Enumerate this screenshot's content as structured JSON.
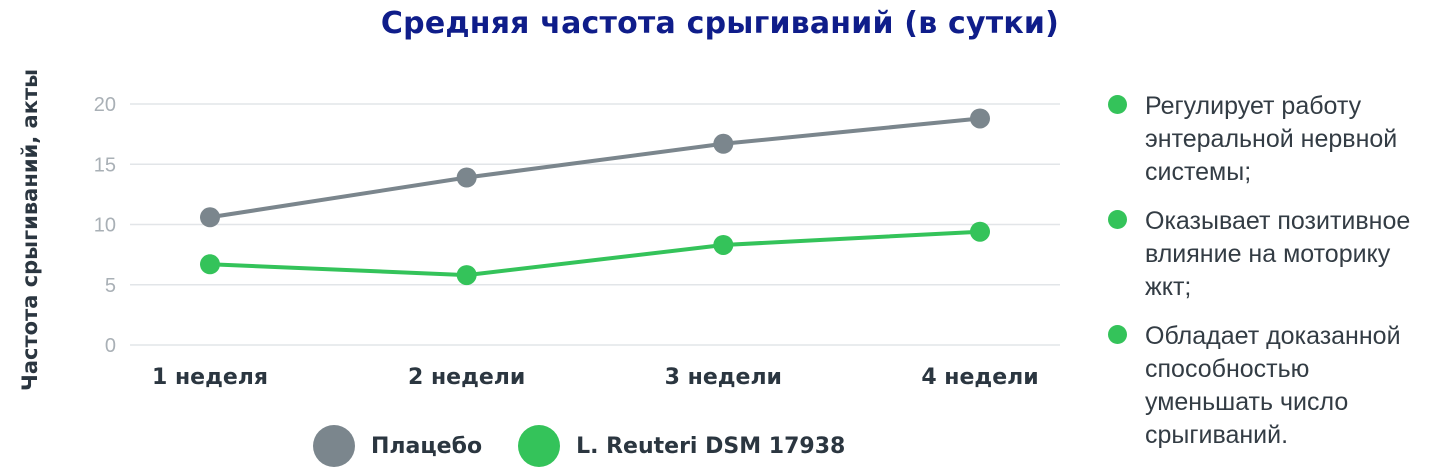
{
  "chart_data": {
    "type": "line",
    "title": "Средняя частота срыгиваний (в сутки)",
    "xlabel": "",
    "ylabel": "Частота срыгиваний, акты",
    "categories": [
      "1 неделя",
      "2 недели",
      "3 недели",
      "4 недели"
    ],
    "ylim": [
      0,
      20
    ],
    "yticks": [
      "0",
      "5",
      "10",
      "15",
      "20"
    ],
    "grid": true,
    "legend_position": "bottom",
    "series": [
      {
        "name": "Плацебо",
        "values": [
          10.6,
          13.9,
          16.7,
          18.8
        ],
        "color": "#7b868d"
      },
      {
        "name": "L. Reuteri DSM 17938",
        "values": [
          6.7,
          5.8,
          8.3,
          9.4
        ],
        "color": "#34c35a"
      }
    ]
  },
  "bullets": [
    {
      "text": "Регулирует работу энтеральной нервной системы;"
    },
    {
      "text": "Оказывает позитивное влияние на моторику жкт;"
    },
    {
      "text": "Обладает доказанной способностью уменьшать число срыгиваний."
    }
  ],
  "colors": {
    "title": "#0f1d8a",
    "grid": "#e2e5e8",
    "tick": "#a9b0b6",
    "bullet": "#34c35a"
  }
}
